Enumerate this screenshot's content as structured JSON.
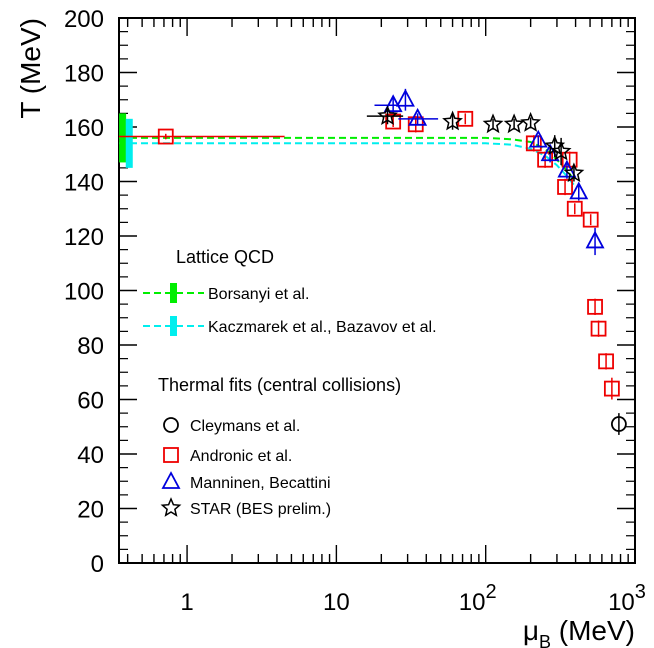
{
  "chart_data": {
    "type": "scatter",
    "xscale": "log",
    "xlim": [
      0.35,
      1000
    ],
    "ylim": [
      0,
      200
    ],
    "x_ticks": [
      {
        "value": 1,
        "label": "1"
      },
      {
        "value": 10,
        "label": "10"
      },
      {
        "value": 100,
        "label": "10",
        "exp": "2"
      },
      {
        "value": 1000,
        "label": "10",
        "exp": "3"
      }
    ],
    "y_ticks": [
      "0",
      "20",
      "40",
      "60",
      "80",
      "100",
      "120",
      "140",
      "160",
      "180",
      "200"
    ],
    "xlabel": "μ",
    "xlabel_sub": "B",
    "xlabel_unit": "(MeV)",
    "ylabel": "T (MeV)",
    "legend": {
      "lattice_title": "Lattice QCD",
      "thermal_title": "Thermal fits (central collisions)",
      "entries": [
        {
          "label": "Borsanyi et al."
        },
        {
          "label": "Kaczmarek et al., Bazavov et al."
        },
        {
          "label": "Cleymans et al."
        },
        {
          "label": "Andronic et al."
        },
        {
          "label": "Manninen, Becattini"
        },
        {
          "label": "STAR (BES prelim.)"
        }
      ]
    },
    "colors": {
      "borsanyi": "#00ee00",
      "kaczmarek": "#00eeee",
      "andronic": "#ee0000",
      "manninen": "#0000dd",
      "star": "#000000",
      "cleymans": "#000000"
    },
    "lattice_curves": [
      {
        "key": "borsanyi",
        "y0": 156,
        "points": [
          [
            0.35,
            156
          ],
          [
            100,
            156
          ],
          [
            150,
            155.5
          ],
          [
            200,
            154.5
          ],
          [
            250,
            152
          ],
          [
            300,
            148
          ],
          [
            350,
            144
          ],
          [
            400,
            140
          ]
        ]
      },
      {
        "key": "kaczmarek",
        "y0": 154,
        "points": [
          [
            0.35,
            154
          ],
          [
            100,
            154
          ],
          [
            150,
            153.5
          ],
          [
            200,
            152
          ],
          [
            250,
            149.5
          ],
          [
            300,
            146
          ],
          [
            350,
            142
          ],
          [
            400,
            138
          ]
        ]
      }
    ],
    "lattice_bands": [
      {
        "key": "borsanyi",
        "x": 0.37,
        "y": 156,
        "err": 9
      },
      {
        "key": "kaczmarek",
        "x": 0.41,
        "y": 154,
        "err": 9
      }
    ],
    "series": [
      {
        "key": "andronic",
        "marker": "square",
        "points": [
          {
            "x": 0.72,
            "y": 156.5,
            "xmin": 0.35,
            "xmax": 4.5,
            "yerr": 1
          },
          {
            "x": 24,
            "y": 162,
            "yerr": 2
          },
          {
            "x": 34,
            "y": 161,
            "yerr": 3
          },
          {
            "x": 73,
            "y": 163,
            "yerr": 2
          },
          {
            "x": 210,
            "y": 154,
            "yerr": 3
          },
          {
            "x": 250,
            "y": 148,
            "yerr": 3
          },
          {
            "x": 340,
            "y": 138,
            "yerr": 3
          },
          {
            "x": 365,
            "y": 148,
            "yerr": 3
          },
          {
            "x": 395,
            "y": 130,
            "yerr": 2
          },
          {
            "x": 505,
            "y": 126,
            "yerr": 2
          },
          {
            "x": 540,
            "y": 94,
            "yerr": 3
          },
          {
            "x": 570,
            "y": 86,
            "yerr": 3
          },
          {
            "x": 640,
            "y": 74,
            "yerr": 3
          },
          {
            "x": 700,
            "y": 64,
            "yerr": 4
          }
        ]
      },
      {
        "key": "manninen",
        "marker": "triangle",
        "points": [
          {
            "x": 24,
            "y": 168,
            "xmin": 18,
            "xmax": 26,
            "yerr": 3
          },
          {
            "x": 29,
            "y": 170,
            "yerr": 4
          },
          {
            "x": 35,
            "y": 163,
            "xmin": 26,
            "xmax": 48,
            "yerr": 2
          },
          {
            "x": 225,
            "y": 155,
            "yerr": 2
          },
          {
            "x": 270,
            "y": 150,
            "yerr": 3
          },
          {
            "x": 350,
            "y": 144,
            "yerr": 3
          },
          {
            "x": 420,
            "y": 136,
            "yerr": 3
          },
          {
            "x": 540,
            "y": 118,
            "yerr": 5
          }
        ]
      },
      {
        "key": "star",
        "marker": "star",
        "points": [
          {
            "x": 22,
            "y": 164,
            "xmin": 16,
            "xmax": 28,
            "yerr": 3
          },
          {
            "x": 60,
            "y": 162,
            "yerr": 3
          },
          {
            "x": 112,
            "y": 161,
            "yerr": 2
          },
          {
            "x": 155,
            "y": 161,
            "yerr": 2
          },
          {
            "x": 200,
            "y": 161.5,
            "yerr": 2
          },
          {
            "x": 290,
            "y": 153,
            "yerr": 4
          },
          {
            "x": 320,
            "y": 151,
            "yerr": 5
          },
          {
            "x": 390,
            "y": 143,
            "yerr": 3
          }
        ]
      },
      {
        "key": "cleymans",
        "marker": "circle",
        "points": [
          {
            "x": 780,
            "y": 51,
            "yerr": 4
          }
        ]
      }
    ]
  }
}
